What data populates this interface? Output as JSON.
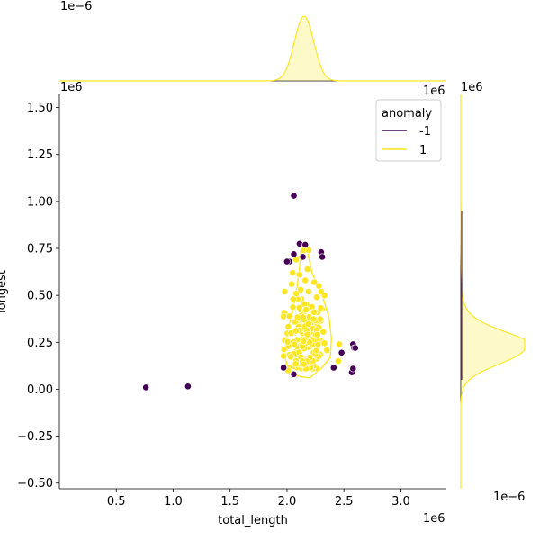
{
  "chart_data": {
    "type": "scatter",
    "xlabel": "total_length",
    "ylabel": "longest",
    "x_scale_label": "1e6",
    "y_scale_label": "1e6",
    "xlim": [
      0.0,
      3.4
    ],
    "ylim": [
      -0.53,
      1.57
    ],
    "x_ticks": [
      0.5,
      1.0,
      1.5,
      2.0,
      2.5,
      3.0
    ],
    "x_tick_labels": [
      "0.5",
      "1.0",
      "1.5",
      "2.0",
      "2.5",
      "3.0"
    ],
    "y_ticks": [
      -0.5,
      -0.25,
      0.0,
      0.25,
      0.5,
      0.75,
      1.0,
      1.25,
      1.5
    ],
    "y_tick_labels": [
      "−0.50",
      "−0.25",
      "0.00",
      "0.25",
      "0.50",
      "0.75",
      "1.00",
      "1.25",
      "1.50"
    ],
    "legend": {
      "title": "anomaly",
      "placement": "top-right",
      "entries": [
        {
          "label": "-1",
          "color": "#440154"
        },
        {
          "label": "1",
          "color": "#fde725"
        }
      ]
    },
    "series": [
      {
        "name": "-1",
        "color": "#440154",
        "points": [
          [
            0.76,
            0.01
          ],
          [
            1.13,
            0.015
          ],
          [
            2.06,
            1.03
          ],
          [
            2.11,
            0.775
          ],
          [
            2.16,
            0.77
          ],
          [
            2.14,
            0.705
          ],
          [
            2.3,
            0.73
          ],
          [
            2.31,
            0.705
          ],
          [
            2.02,
            0.68
          ],
          [
            2.0,
            0.68
          ],
          [
            2.06,
            0.72
          ],
          [
            1.97,
            0.115
          ],
          [
            2.06,
            0.08
          ],
          [
            2.41,
            0.115
          ],
          [
            2.48,
            0.195
          ],
          [
            2.58,
            0.24
          ],
          [
            2.59,
            0.22
          ],
          [
            2.6,
            0.22
          ],
          [
            2.57,
            0.09
          ],
          [
            2.58,
            0.11
          ]
        ]
      },
      {
        "name": "1",
        "color": "#fde725",
        "points": [
          [
            2.15,
            0.74
          ],
          [
            2.19,
            0.74
          ],
          [
            2.12,
            0.7
          ],
          [
            2.08,
            0.69
          ],
          [
            2.18,
            0.64
          ],
          [
            2.05,
            0.62
          ],
          [
            1.98,
            0.52
          ],
          [
            2.04,
            0.56
          ],
          [
            2.11,
            0.61
          ],
          [
            2.16,
            0.58
          ],
          [
            2.24,
            0.57
          ],
          [
            2.28,
            0.55
          ],
          [
            2.3,
            0.52
          ],
          [
            2.33,
            0.5
          ],
          [
            2.26,
            0.49
          ],
          [
            2.08,
            0.51
          ],
          [
            2.12,
            0.53
          ],
          [
            2.19,
            0.52
          ],
          [
            2.46,
            0.24
          ],
          [
            2.45,
            0.15
          ],
          [
            2.01,
            0.1
          ]
        ],
        "cluster": {
          "cx": 2.16,
          "cy": 0.27,
          "sx": 0.09,
          "sy": 0.11,
          "n": 160
        }
      }
    ],
    "kde_contour_color": "#fde725",
    "marginal_top": {
      "scale_label": "1e−6",
      "peak_x": 2.15
    },
    "marginal_right": {
      "scale_label": "1e−6",
      "peak_y": 0.22
    }
  }
}
